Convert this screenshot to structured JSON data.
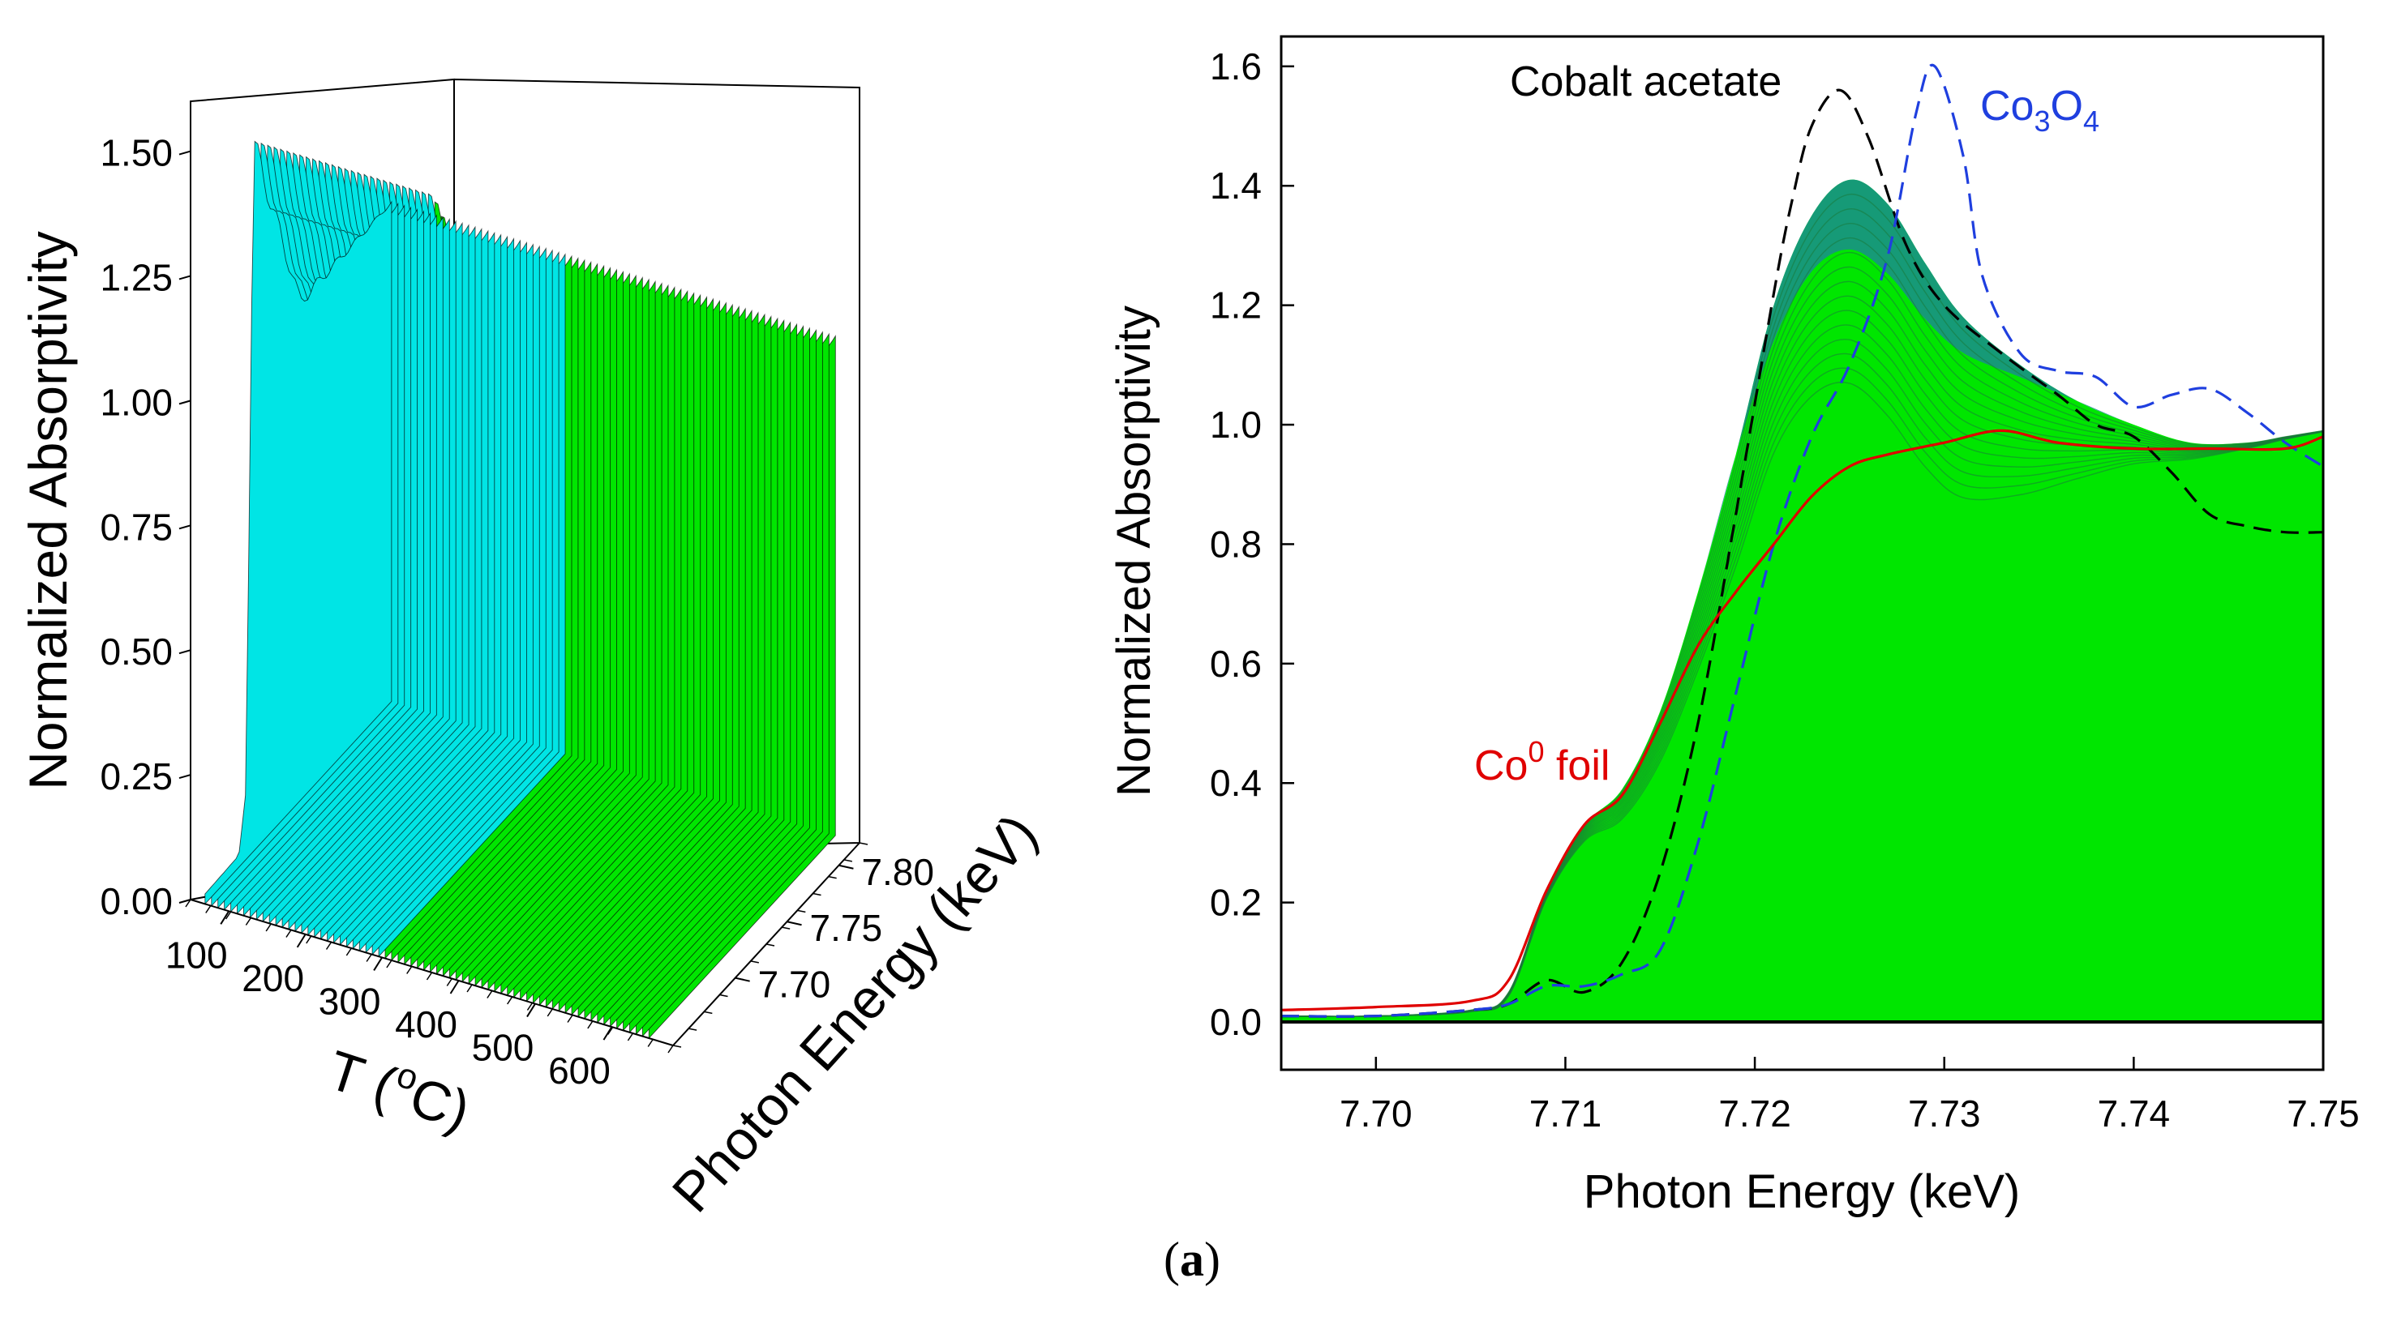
{
  "chart_data": [
    {
      "type": "waterfall-3d",
      "title": "",
      "zlabel": "Normalized Absorptivity",
      "xlabel_prefix": "T (",
      "xlabel_sup": "o",
      "xlabel_suffix": "C)",
      "ylabel": "Photon Energy (keV)",
      "z_ticks": [
        "0.00",
        "0.25",
        "0.50",
        "0.75",
        "1.00",
        "1.25",
        "1.50"
      ],
      "z_range": [
        0,
        1.6
      ],
      "t_ticks": [
        "100",
        "200",
        "300",
        "400",
        "500",
        "600"
      ],
      "e_ticks": [
        "7.70",
        "7.75",
        "7.80"
      ],
      "series_colors": {
        "low_T": "#00e5e5",
        "high_T": "#00e600"
      },
      "series_transition_T": 300,
      "n_spectra": 70,
      "max_z_lowT": 1.42,
      "max_z_highT": 1.05
    },
    {
      "type": "line",
      "title": "",
      "xlabel": "Photon Energy (keV)",
      "ylabel": "Normalized Absorptivity",
      "xlim": [
        7.695,
        7.75
      ],
      "ylim": [
        -0.08,
        1.65
      ],
      "x_ticks": [
        "7.70",
        "7.71",
        "7.72",
        "7.73",
        "7.74",
        "7.75"
      ],
      "y_ticks": [
        "0.0",
        "0.2",
        "0.4",
        "0.6",
        "0.8",
        "1.0",
        "1.2",
        "1.4",
        "1.6"
      ],
      "series": [
        {
          "name": "Cobalt acetate",
          "color": "#000000",
          "dash": true,
          "x": [
            7.695,
            7.7,
            7.705,
            7.707,
            7.709,
            7.711,
            7.713,
            7.715,
            7.717,
            7.719,
            7.721,
            7.722,
            7.723,
            7.7245,
            7.726,
            7.728,
            7.73,
            7.733,
            7.736,
            7.738,
            7.74,
            7.742,
            7.744,
            7.746,
            7.748,
            7.75
          ],
          "y": [
            0.01,
            0.01,
            0.02,
            0.03,
            0.07,
            0.05,
            0.1,
            0.25,
            0.5,
            0.85,
            1.22,
            1.38,
            1.5,
            1.56,
            1.48,
            1.3,
            1.2,
            1.12,
            1.05,
            1.0,
            0.98,
            0.92,
            0.85,
            0.83,
            0.82,
            0.82
          ]
        },
        {
          "name": "Co3O4",
          "color": "#1f3fdf",
          "dash": true,
          "x": [
            7.695,
            7.7,
            7.705,
            7.707,
            7.709,
            7.711,
            7.713,
            7.715,
            7.717,
            7.719,
            7.721,
            7.723,
            7.725,
            7.727,
            7.7285,
            7.7295,
            7.731,
            7.732,
            7.734,
            7.736,
            7.738,
            7.74,
            7.742,
            7.744,
            7.746,
            7.748,
            7.75
          ],
          "y": [
            0.01,
            0.01,
            0.02,
            0.03,
            0.06,
            0.06,
            0.08,
            0.12,
            0.3,
            0.55,
            0.8,
            0.98,
            1.1,
            1.28,
            1.52,
            1.6,
            1.45,
            1.25,
            1.12,
            1.09,
            1.08,
            1.03,
            1.05,
            1.06,
            1.02,
            0.97,
            0.93
          ]
        },
        {
          "name": "Co0 foil",
          "color": "#e00000",
          "dash": false,
          "x": [
            7.695,
            7.7,
            7.705,
            7.707,
            7.709,
            7.711,
            7.713,
            7.715,
            7.717,
            7.719,
            7.721,
            7.723,
            7.725,
            7.727,
            7.73,
            7.733,
            7.736,
            7.74,
            7.744,
            7.748,
            7.75
          ],
          "y": [
            0.02,
            0.025,
            0.035,
            0.07,
            0.22,
            0.33,
            0.38,
            0.5,
            0.63,
            0.72,
            0.8,
            0.88,
            0.93,
            0.95,
            0.97,
            0.99,
            0.97,
            0.96,
            0.96,
            0.96,
            0.98
          ]
        }
      ],
      "in situ envelope": {
        "color": "#00e600",
        "upper_color": "#1a8c8c",
        "x": [
          7.695,
          7.7,
          7.705,
          7.707,
          7.709,
          7.711,
          7.713,
          7.715,
          7.717,
          7.719,
          7.721,
          7.723,
          7.725,
          7.727,
          7.729,
          7.731,
          7.734,
          7.737,
          7.74,
          7.743,
          7.746,
          7.748,
          7.75
        ],
        "y": [
          0.01,
          0.01,
          0.02,
          0.05,
          0.22,
          0.33,
          0.39,
          0.52,
          0.72,
          0.95,
          1.2,
          1.35,
          1.41,
          1.37,
          1.27,
          1.18,
          1.1,
          1.04,
          1.0,
          0.97,
          0.97,
          0.98,
          0.99
        ]
      },
      "annotations": [
        {
          "text": "Cobalt acetate",
          "color": "#000000"
        },
        {
          "text_parts": [
            "Co",
            "3",
            "O",
            "4"
          ],
          "color": "#1f3fdf"
        },
        {
          "text_parts": [
            "Co",
            "0",
            " foil"
          ],
          "color": "#e00000"
        }
      ]
    }
  ],
  "caption": {
    "open": "(",
    "letter": "a",
    "close": ")"
  }
}
